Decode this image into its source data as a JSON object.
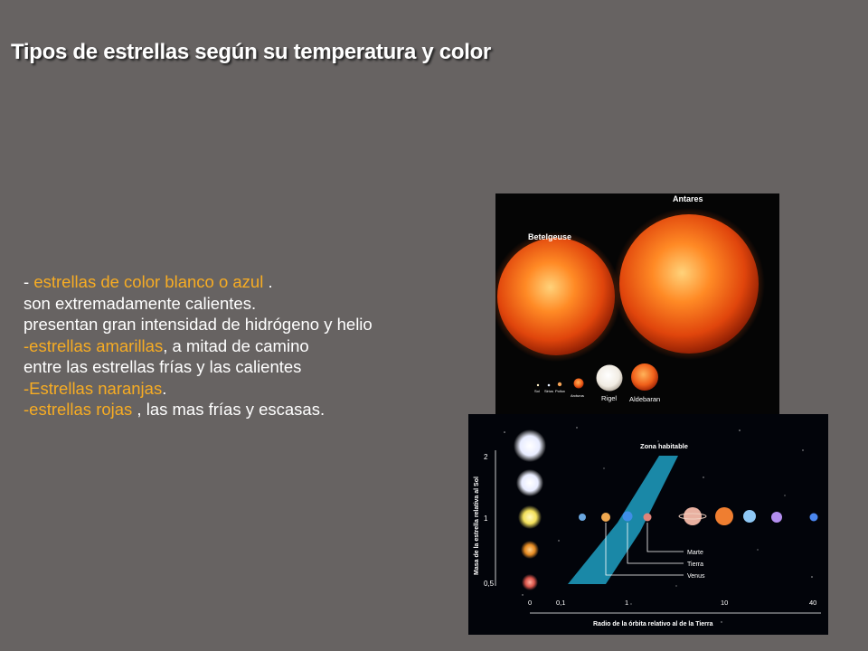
{
  "slide": {
    "title": "Tipos de estrellas según su temperatura y color"
  },
  "body": {
    "l1_prefix": "- ",
    "l1_highlight": "estrellas de color blanco o azul",
    "l1_suffix": " .",
    "l2": "son extremadamente calientes.",
    "l3": "presentan gran intensidad de hidrógeno y helio",
    "l4_highlight": "-estrellas amarillas",
    "l4_suffix": ", a mitad de camino",
    "l5": "entre las estrellas frías y las calientes",
    "l6_highlight": "-Estrellas naranjas",
    "l6_suffix": ".",
    "l7_highlight": "-estrellas rojas",
    "l7_suffix": " , las mas frías y escasas."
  },
  "star_image": {
    "antares": "Antares",
    "betelgeuse": "Betelgeuse",
    "rigel": "Rigel",
    "aldebaran": "Aldebaran",
    "arcturus": "Arcturus",
    "sol": "Sol",
    "sirius": "Sirius",
    "pollux": "Pollux"
  },
  "habitable_zone_image": {
    "zone_label": "Zona habitable",
    "y_axis_label": "Masa de la estrella relativa al Sol",
    "y_ticks": [
      "2",
      "1",
      "0,5"
    ],
    "x_ticks": [
      "0",
      "0,1",
      "1",
      "10",
      "40"
    ],
    "x_axis_label": "Radio de la órbita relativo al de la Tierra",
    "planet_marte": "Marte",
    "planet_tierra": "Tierra",
    "planet_venus": "Venus"
  },
  "colors": {
    "background": "#676362",
    "title": "#ffffff",
    "text": "#ffffff",
    "highlight": "#f7ac23",
    "habitable_zone": "#1b8fb0"
  }
}
